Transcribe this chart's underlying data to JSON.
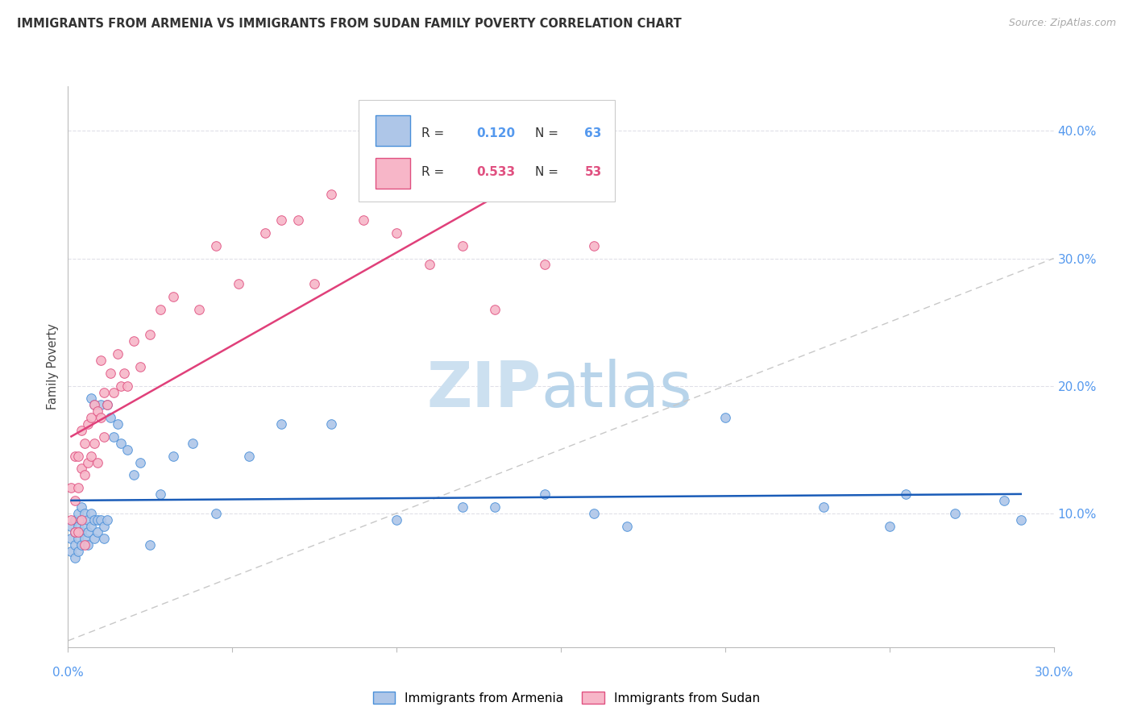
{
  "title": "IMMIGRANTS FROM ARMENIA VS IMMIGRANTS FROM SUDAN FAMILY POVERTY CORRELATION CHART",
  "source": "Source: ZipAtlas.com",
  "ylabel": "Family Poverty",
  "xlim": [
    0.0,
    0.3
  ],
  "ylim": [
    -0.005,
    0.435
  ],
  "armenia_color": "#aec6e8",
  "sudan_color": "#f7b6c8",
  "armenia_edge_color": "#4a90d9",
  "sudan_edge_color": "#e05080",
  "armenia_line_color": "#1a5cb8",
  "sudan_line_color": "#e0407a",
  "diagonal_color": "#c8c8c8",
  "grid_color": "#e0e0e8",
  "R_armenia": 0.12,
  "N_armenia": 63,
  "R_sudan": 0.533,
  "N_sudan": 53,
  "right_ytick_vals": [
    0.1,
    0.2,
    0.3,
    0.4
  ],
  "right_ytick_labels": [
    "10.0%",
    "20.0%",
    "30.0%",
    "40.0%"
  ],
  "armenia_x": [
    0.001,
    0.001,
    0.001,
    0.002,
    0.002,
    0.002,
    0.002,
    0.003,
    0.003,
    0.003,
    0.003,
    0.004,
    0.004,
    0.004,
    0.004,
    0.005,
    0.005,
    0.005,
    0.006,
    0.006,
    0.006,
    0.007,
    0.007,
    0.007,
    0.008,
    0.008,
    0.008,
    0.009,
    0.009,
    0.01,
    0.01,
    0.011,
    0.011,
    0.012,
    0.012,
    0.013,
    0.014,
    0.015,
    0.016,
    0.018,
    0.02,
    0.022,
    0.025,
    0.028,
    0.032,
    0.038,
    0.045,
    0.055,
    0.065,
    0.08,
    0.1,
    0.12,
    0.145,
    0.17,
    0.2,
    0.23,
    0.255,
    0.27,
    0.285,
    0.29,
    0.13,
    0.16,
    0.25
  ],
  "armenia_y": [
    0.09,
    0.08,
    0.07,
    0.095,
    0.085,
    0.075,
    0.065,
    0.1,
    0.09,
    0.08,
    0.07,
    0.105,
    0.095,
    0.085,
    0.075,
    0.1,
    0.09,
    0.08,
    0.095,
    0.085,
    0.075,
    0.19,
    0.1,
    0.09,
    0.185,
    0.095,
    0.08,
    0.095,
    0.085,
    0.185,
    0.095,
    0.09,
    0.08,
    0.185,
    0.095,
    0.175,
    0.16,
    0.17,
    0.155,
    0.15,
    0.13,
    0.14,
    0.075,
    0.115,
    0.145,
    0.155,
    0.1,
    0.145,
    0.17,
    0.17,
    0.095,
    0.105,
    0.115,
    0.09,
    0.175,
    0.105,
    0.115,
    0.1,
    0.11,
    0.095,
    0.105,
    0.1,
    0.09
  ],
  "sudan_x": [
    0.001,
    0.001,
    0.002,
    0.002,
    0.002,
    0.003,
    0.003,
    0.003,
    0.004,
    0.004,
    0.004,
    0.005,
    0.005,
    0.005,
    0.006,
    0.006,
    0.007,
    0.007,
    0.008,
    0.008,
    0.009,
    0.009,
    0.01,
    0.01,
    0.011,
    0.011,
    0.012,
    0.013,
    0.014,
    0.015,
    0.016,
    0.017,
    0.018,
    0.02,
    0.022,
    0.025,
    0.028,
    0.032,
    0.04,
    0.045,
    0.052,
    0.06,
    0.065,
    0.07,
    0.075,
    0.08,
    0.09,
    0.1,
    0.11,
    0.12,
    0.13,
    0.145,
    0.16
  ],
  "sudan_y": [
    0.12,
    0.095,
    0.145,
    0.11,
    0.085,
    0.145,
    0.12,
    0.085,
    0.165,
    0.135,
    0.095,
    0.155,
    0.13,
    0.075,
    0.17,
    0.14,
    0.175,
    0.145,
    0.185,
    0.155,
    0.18,
    0.14,
    0.22,
    0.175,
    0.195,
    0.16,
    0.185,
    0.21,
    0.195,
    0.225,
    0.2,
    0.21,
    0.2,
    0.235,
    0.215,
    0.24,
    0.26,
    0.27,
    0.26,
    0.31,
    0.28,
    0.32,
    0.33,
    0.33,
    0.28,
    0.35,
    0.33,
    0.32,
    0.295,
    0.31,
    0.26,
    0.295,
    0.31
  ]
}
